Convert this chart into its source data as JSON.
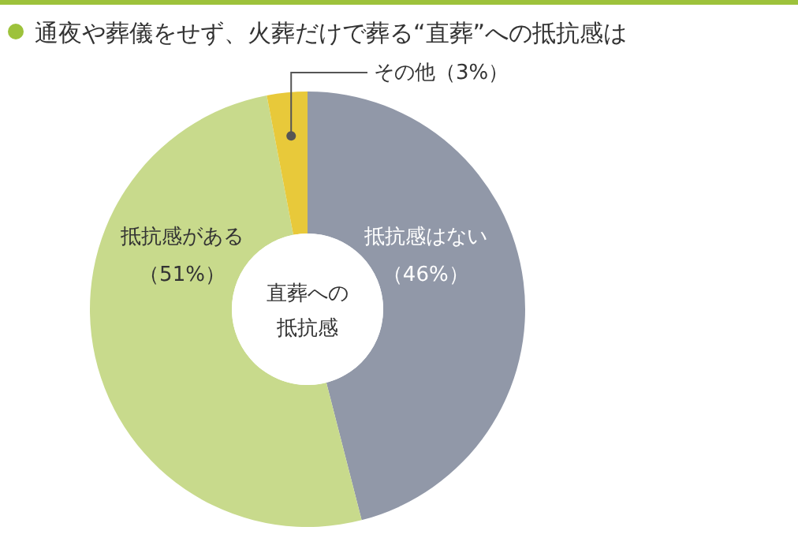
{
  "chart_data": {
    "type": "donut",
    "title": "通夜や葬儀をせず、火葬だけで葬る“直葬”への抵抗感は",
    "categories": [
      "抵抗感はない",
      "抵抗感がある",
      "その他"
    ],
    "values": [
      46,
      51,
      3
    ],
    "value_labels": [
      "（46%）",
      "（51%）",
      "（3%）"
    ],
    "colors": [
      "#9198a8",
      "#c8da8c",
      "#e8c93a"
    ],
    "annotations": [
      "直葬への",
      "抵抗感"
    ],
    "legend": false
  }
}
